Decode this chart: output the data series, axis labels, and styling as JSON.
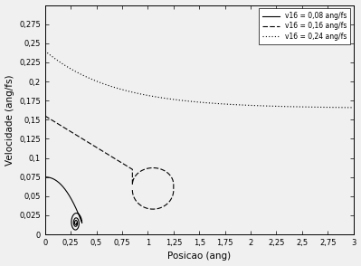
{
  "title": "",
  "xlabel": "Posicao (ang)",
  "ylabel": "Velocidade (ang/fs)",
  "xlim": [
    0,
    3
  ],
  "ylim": [
    0,
    0.3
  ],
  "xticks": [
    0,
    0.25,
    0.5,
    0.75,
    1.0,
    1.25,
    1.5,
    1.75,
    2.0,
    2.25,
    2.5,
    2.75,
    3.0
  ],
  "yticks": [
    0,
    0.025,
    0.05,
    0.075,
    0.1,
    0.125,
    0.15,
    0.175,
    0.2,
    0.225,
    0.25,
    0.275
  ],
  "legend": [
    {
      "label": "v16 = 0,08 ang/fs",
      "ls": "solid"
    },
    {
      "label": "v16 = 0,16 ang/fs",
      "ls": "dashed"
    },
    {
      "label": "v16 = 0,24 ang/fs",
      "ls": "dotted"
    }
  ],
  "color": "black",
  "bg_color": "#f0f0f0",
  "figsize": [
    3.99,
    2.94
  ],
  "dpi": 100
}
